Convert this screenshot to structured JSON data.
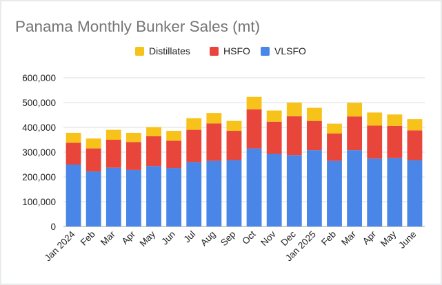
{
  "chart_data": {
    "type": "bar",
    "stacked": true,
    "title": "Panama Monthly Bunker Sales (mt)",
    "xlabel": "",
    "ylabel": "",
    "ylim": [
      0,
      600000
    ],
    "yticks": [
      "0",
      "100,000",
      "200,000",
      "300,000",
      "400,000",
      "500,000",
      "600,000"
    ],
    "grid": true,
    "legend_position": "top",
    "categories": [
      "Jan 2024",
      "Feb",
      "Mar",
      "Apr",
      "May",
      "Jun",
      "Jul",
      "Aug",
      "Sep",
      "Oct",
      "Nov",
      "Dec",
      "Jan 2025",
      "Feb",
      "Mar",
      "Apr",
      "May",
      "June"
    ],
    "series": [
      {
        "name": "VLSFO",
        "color": "#4a86e8",
        "values": [
          250000,
          222000,
          237000,
          228000,
          244000,
          236000,
          260000,
          265000,
          268000,
          315000,
          293000,
          288000,
          308000,
          265000,
          308000,
          274000,
          276000,
          268000
        ]
      },
      {
        "name": "HSFO",
        "color": "#e8463a",
        "values": [
          88000,
          93000,
          113000,
          113000,
          120000,
          110000,
          130000,
          151000,
          118000,
          158000,
          130000,
          157000,
          118000,
          110000,
          136000,
          133000,
          130000,
          120000
        ]
      },
      {
        "name": "Distillates",
        "color": "#f7c31a",
        "values": [
          40000,
          40000,
          40000,
          37000,
          37000,
          40000,
          47000,
          42000,
          40000,
          50000,
          45000,
          55000,
          53000,
          40000,
          55000,
          53000,
          46000,
          45000
        ]
      }
    ]
  }
}
